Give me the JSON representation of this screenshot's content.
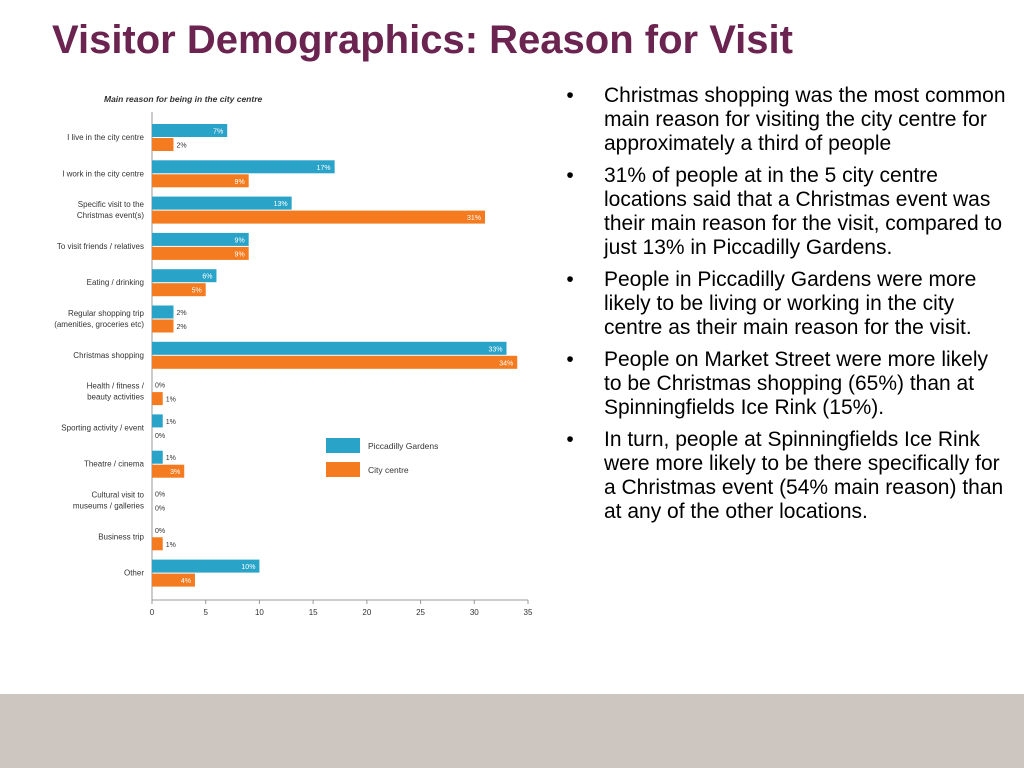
{
  "slide": {
    "title": "Visitor Demographics: Reason for Visit"
  },
  "bullets": [
    "Christmas shopping was the most common main reason for visiting the city centre for approximately a third of people",
    "31% of people at in the 5 city centre locations said that a Christmas event was their main reason for the visit, compared to just 13% in Piccadilly Gardens.",
    "People in Piccadilly Gardens were more likely to be living or working in the city centre as their main reason for the visit.",
    "People on Market Street were more likely to be Christmas shopping (65%) than at Spinningfields Ice Rink (15%).",
    "In turn, people at Spinningfields Ice Rink were more likely to be there specifically for a Christmas event (54% main reason) than at any of the other locations."
  ],
  "bullet_marker": "•",
  "chart_data": {
    "type": "bar",
    "orientation": "horizontal",
    "title": "Main reason for being in the city centre",
    "categories": [
      [
        "I live in the city centre"
      ],
      [
        "I work in the city centre"
      ],
      [
        "Specific visit to the",
        "Christmas event(s)"
      ],
      [
        "To visit friends / relatives"
      ],
      [
        "Eating / drinking"
      ],
      [
        "Regular shopping trip",
        "(amenities, groceries etc)"
      ],
      [
        "Christmas shopping"
      ],
      [
        "Health / fitness /",
        "beauty activities"
      ],
      [
        "Sporting activity / event"
      ],
      [
        "Theatre / cinema"
      ],
      [
        "Cultural visit to",
        "museums / galleries"
      ],
      [
        "Business trip"
      ],
      [
        "Other"
      ]
    ],
    "series": [
      {
        "name": "Piccadilly Gardens",
        "color": "#2aa3c9",
        "values": [
          7,
          17,
          13,
          9,
          6,
          2,
          33,
          0,
          1,
          1,
          0,
          0,
          10
        ],
        "labels": [
          "7%",
          "17%",
          "13%",
          "9%",
          "6%",
          "2%",
          "33%",
          "0%",
          "1%",
          "1%",
          "0%",
          "0%",
          "10%"
        ]
      },
      {
        "name": "City centre",
        "color": "#f47b20",
        "values": [
          2,
          9,
          31,
          9,
          5,
          2,
          34,
          1,
          0,
          3,
          0,
          1,
          4
        ],
        "labels": [
          "2%",
          "9%",
          "31%",
          "9%",
          "5%",
          "2%",
          "34%",
          "1%",
          "0%",
          "3%",
          "0%",
          "1%",
          "4%"
        ]
      }
    ],
    "xlim": [
      0,
      35
    ],
    "xticks": [
      "0",
      "5",
      "10",
      "15",
      "20",
      "25",
      "30",
      "35"
    ],
    "xtick_values": [
      0,
      5,
      10,
      15,
      20,
      25,
      30,
      35
    ],
    "legend": {
      "placement": "right-middle",
      "entries": [
        "Piccadilly Gardens",
        "City centre"
      ]
    },
    "grid": false
  }
}
